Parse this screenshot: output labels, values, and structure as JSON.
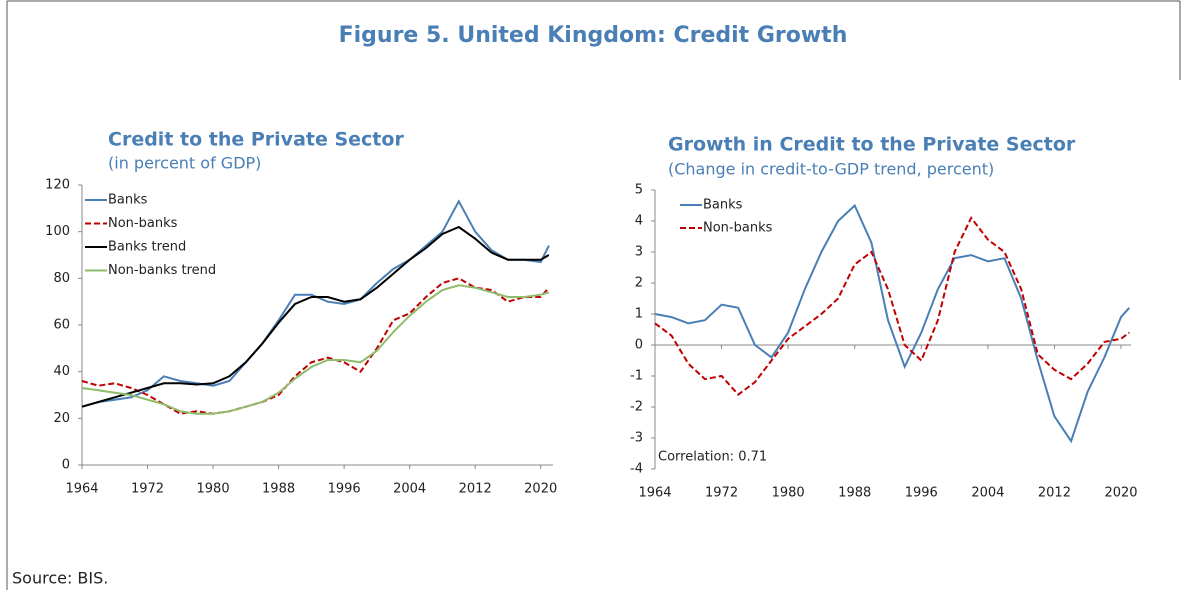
{
  "title": "Figure 5. United Kingdom: Credit Growth",
  "source": "Source: BIS.",
  "chart_data": [
    {
      "type": "line",
      "title": "Credit to the Private Sector",
      "subtitle": "(in percent of GDP)",
      "x": [
        1964,
        1966,
        1968,
        1970,
        1972,
        1974,
        1976,
        1978,
        1980,
        1982,
        1984,
        1986,
        1988,
        1990,
        1992,
        1994,
        1996,
        1998,
        2000,
        2002,
        2004,
        2006,
        2008,
        2010,
        2012,
        2014,
        2016,
        2018,
        2020,
        2021
      ],
      "xlim": [
        1964,
        2021.5
      ],
      "xticks": [
        1964,
        1972,
        1980,
        1988,
        1996,
        2004,
        2012,
        2020
      ],
      "ylim": [
        0,
        120
      ],
      "yticks": [
        0,
        20,
        40,
        60,
        80,
        100,
        120
      ],
      "legend": "upper left",
      "series": [
        {
          "name": "Banks",
          "color": "#4a7fb5",
          "dashed": false,
          "values": [
            25,
            27,
            28,
            29,
            32,
            38,
            36,
            35,
            34,
            36,
            44,
            52,
            62,
            73,
            73,
            70,
            69,
            71,
            78,
            84,
            88,
            94,
            100,
            113,
            100,
            92,
            88,
            88,
            87,
            94
          ]
        },
        {
          "name": "Non-banks",
          "color": "#c00000",
          "dashed": true,
          "values": [
            36,
            34,
            35,
            33,
            30,
            26,
            22,
            23,
            22,
            23,
            25,
            27,
            30,
            38,
            44,
            46,
            44,
            40,
            50,
            62,
            65,
            72,
            78,
            80,
            76,
            75,
            70,
            72,
            72,
            76
          ]
        },
        {
          "name": "Banks trend",
          "color": "#000000",
          "dashed": false,
          "values": [
            25,
            27,
            29,
            31,
            33,
            35,
            35,
            34.5,
            35,
            38,
            44,
            52,
            61,
            69,
            72,
            72,
            70,
            71,
            76,
            82,
            88,
            93,
            99,
            102,
            97,
            91,
            88,
            88,
            88,
            90
          ]
        },
        {
          "name": "Non-banks trend",
          "color": "#8fbc6a",
          "dashed": false,
          "values": [
            33,
            32,
            31,
            30,
            28,
            26,
            23,
            22,
            22,
            23,
            25,
            27,
            31,
            37,
            42,
            45,
            45,
            44,
            49,
            57,
            64,
            70,
            75,
            77,
            76,
            74,
            72,
            72,
            73,
            74
          ]
        }
      ]
    },
    {
      "type": "line",
      "title": "Growth in Credit to the Private Sector",
      "subtitle": "(Change in credit-to-GDP trend, percent)",
      "annotation": "Correlation: 0.71",
      "x": [
        1964,
        1966,
        1968,
        1970,
        1972,
        1974,
        1976,
        1978,
        1980,
        1982,
        1984,
        1986,
        1988,
        1990,
        1992,
        1994,
        1996,
        1998,
        2000,
        2002,
        2004,
        2006,
        2008,
        2010,
        2012,
        2014,
        2016,
        2018,
        2020,
        2021
      ],
      "xlim": [
        1964,
        2021.2
      ],
      "xticks": [
        1964,
        1972,
        1980,
        1988,
        1996,
        2004,
        2012,
        2020
      ],
      "ylim": [
        -4,
        5
      ],
      "yticks": [
        -4,
        -3,
        -2,
        -1,
        0,
        1,
        2,
        3,
        4,
        5
      ],
      "legend": "upper left",
      "series": [
        {
          "name": "Banks",
          "color": "#4a7fb5",
          "dashed": false,
          "values": [
            1.0,
            0.9,
            0.7,
            0.8,
            1.3,
            1.2,
            0.0,
            -0.4,
            0.4,
            1.8,
            3.0,
            4.0,
            4.5,
            3.3,
            0.8,
            -0.7,
            0.4,
            1.8,
            2.8,
            2.9,
            2.7,
            2.8,
            1.5,
            -0.5,
            -2.3,
            -3.1,
            -1.5,
            -0.4,
            0.9,
            1.2
          ]
        },
        {
          "name": "Non-banks",
          "color": "#c00000",
          "dashed": true,
          "values": [
            0.7,
            0.3,
            -0.6,
            -1.1,
            -1.0,
            -1.6,
            -1.2,
            -0.5,
            0.2,
            0.6,
            1.0,
            1.5,
            2.6,
            3.0,
            1.8,
            0.0,
            -0.5,
            0.8,
            3.0,
            4.1,
            3.4,
            3.0,
            1.8,
            -0.3,
            -0.8,
            -1.1,
            -0.6,
            0.1,
            0.2,
            0.4
          ]
        }
      ]
    }
  ]
}
